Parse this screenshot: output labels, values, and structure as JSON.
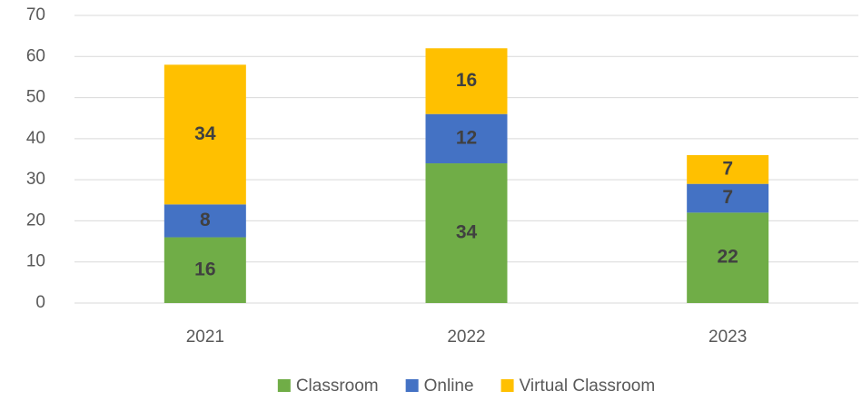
{
  "chart_data": {
    "type": "stacked_bar",
    "categories": [
      "2021",
      "2022",
      "2023"
    ],
    "series": [
      {
        "name": "Classroom",
        "color": "#70ad47",
        "values": [
          16,
          34,
          22
        ]
      },
      {
        "name": "Online",
        "color": "#4472c4",
        "values": [
          8,
          12,
          7
        ]
      },
      {
        "name": "Virtual Classroom",
        "color": "#ffc000",
        "values": [
          34,
          16,
          7
        ]
      }
    ],
    "ylim": [
      0,
      70
    ],
    "yticks": [
      0,
      10,
      20,
      30,
      40,
      50,
      60,
      70
    ],
    "grid": true,
    "legend": "bottom"
  }
}
